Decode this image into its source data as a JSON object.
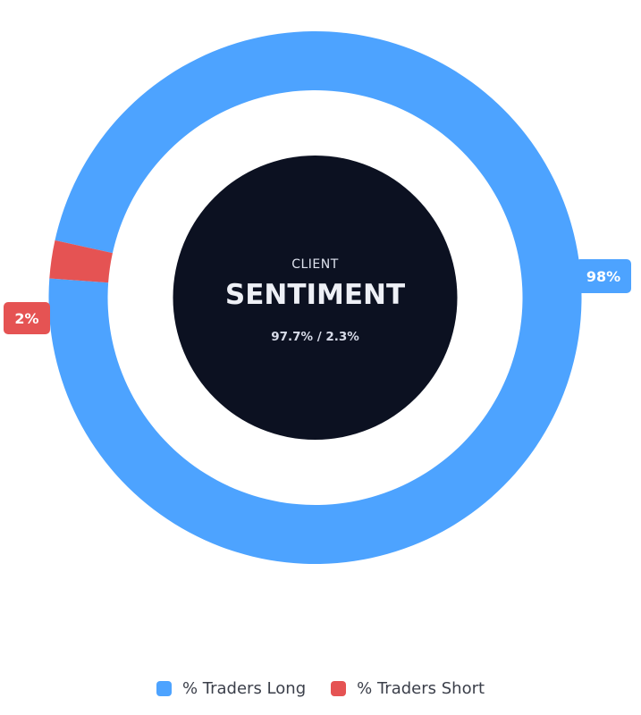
{
  "chart_data": {
    "type": "pie",
    "categories": [
      "% Traders Long",
      "% Traders Short"
    ],
    "values": [
      97.7,
      2.3
    ],
    "slice_labels": [
      "98%",
      "2%"
    ],
    "colors": [
      "#4da3ff",
      "#e55353"
    ],
    "legend_position": "bottom",
    "center": {
      "kicker": "CLIENT",
      "title": "SENTIMENT",
      "ratio": "97.7% / 2.3%"
    }
  }
}
